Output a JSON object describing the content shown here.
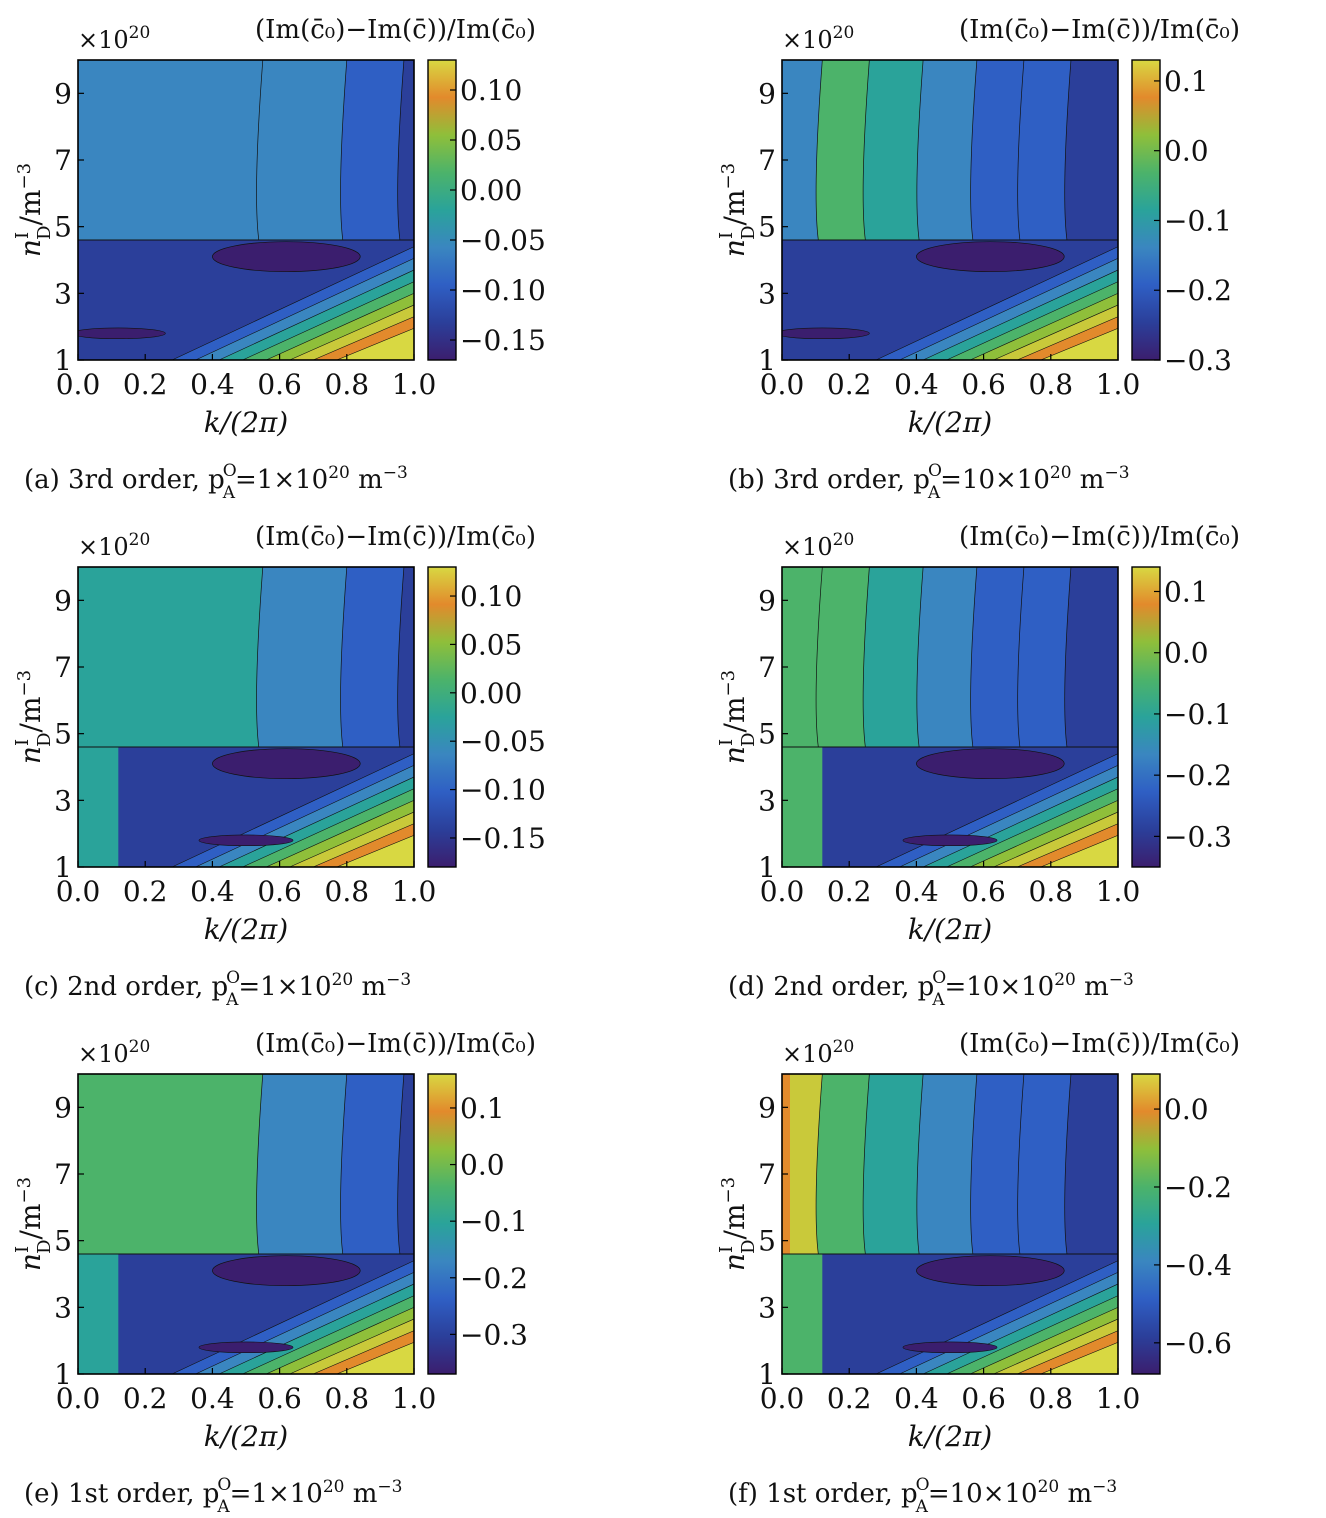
{
  "colorscale": [
    "#3b1e6e",
    "#2b3f9a",
    "#2f5fc4",
    "#3a86c0",
    "#2aa39a",
    "#4cb36a",
    "#8fbf3a",
    "#c9c93a",
    "#e28a2c",
    "#d8d842"
  ],
  "chart_data": [
    {
      "type": "contour",
      "caption": "(a) 3rd order, p",
      "caption_sub": "A",
      "caption_sup": "O",
      "caption_tail": "=1×10",
      "caption_exp": "20",
      "caption_unit": " m",
      "caption_unit_exp": "−3",
      "colorbar_title": "(Im(c̄₀)−Im(c̄))/Im(c̄₀)",
      "multiplier": "×10",
      "multiplier_exp": "20",
      "xlabel": "k/(2π)",
      "ylabel": "n",
      "ylabel_sup": "I",
      "ylabel_sub": "D",
      "ylabel_unit": "/m",
      "ylabel_unit_exp": "−3",
      "xlim": [
        0.0,
        1.0
      ],
      "ylim": [
        1,
        10
      ],
      "xticks": [
        "0.0",
        "0.2",
        "0.4",
        "0.6",
        "0.8",
        "1.0"
      ],
      "yticks": [
        "1",
        "3",
        "5",
        "7",
        "9"
      ],
      "colorbar_range": [
        -0.17,
        0.13
      ],
      "colorbar_ticks": [
        "0.10",
        "0.05",
        "0.00",
        "−0.05",
        "−0.10",
        "−0.15"
      ],
      "colorbar_values": [
        0.1,
        0.05,
        0.0,
        -0.05,
        -0.1,
        -0.15
      ]
    },
    {
      "type": "contour",
      "caption": "(b) 3rd order, p",
      "caption_sub": "A",
      "caption_sup": "O",
      "caption_tail": "=10×10",
      "caption_exp": "20",
      "caption_unit": " m",
      "caption_unit_exp": "−3",
      "colorbar_title": "(Im(c̄₀)−Im(c̄))/Im(c̄₀)",
      "multiplier": "×10",
      "multiplier_exp": "20",
      "xlabel": "k/(2π)",
      "ylabel": "n",
      "ylabel_sup": "I",
      "ylabel_sub": "D",
      "ylabel_unit": "/m",
      "ylabel_unit_exp": "−3",
      "xlim": [
        0.0,
        1.0
      ],
      "ylim": [
        1,
        10
      ],
      "xticks": [
        "0.0",
        "0.2",
        "0.4",
        "0.6",
        "0.8",
        "1.0"
      ],
      "yticks": [
        "1",
        "3",
        "5",
        "7",
        "9"
      ],
      "colorbar_range": [
        -0.3,
        0.13
      ],
      "colorbar_ticks": [
        "0.1",
        "0.0",
        "−0.1",
        "−0.2",
        "−0.3"
      ],
      "colorbar_values": [
        0.1,
        0.0,
        -0.1,
        -0.2,
        -0.3
      ]
    },
    {
      "type": "contour",
      "caption": "(c) 2nd order, p",
      "caption_sub": "A",
      "caption_sup": "O",
      "caption_tail": "=1×10",
      "caption_exp": "20",
      "caption_unit": " m",
      "caption_unit_exp": "−3",
      "colorbar_title": "(Im(c̄₀)−Im(c̄))/Im(c̄₀)",
      "multiplier": "×10",
      "multiplier_exp": "20",
      "xlabel": "k/(2π)",
      "ylabel": "n",
      "ylabel_sup": "I",
      "ylabel_sub": "D",
      "ylabel_unit": "/m",
      "ylabel_unit_exp": "−3",
      "xlim": [
        0.0,
        1.0
      ],
      "ylim": [
        1,
        10
      ],
      "xticks": [
        "0.0",
        "0.2",
        "0.4",
        "0.6",
        "0.8",
        "1.0"
      ],
      "yticks": [
        "1",
        "3",
        "5",
        "7",
        "9"
      ],
      "colorbar_range": [
        -0.18,
        0.13
      ],
      "colorbar_ticks": [
        "0.10",
        "0.05",
        "0.00",
        "−0.05",
        "−0.10",
        "−0.15"
      ],
      "colorbar_values": [
        0.1,
        0.05,
        0.0,
        -0.05,
        -0.1,
        -0.15
      ]
    },
    {
      "type": "contour",
      "caption": "(d) 2nd order, p",
      "caption_sub": "A",
      "caption_sup": "O",
      "caption_tail": "=10×10",
      "caption_exp": "20",
      "caption_unit": " m",
      "caption_unit_exp": "−3",
      "colorbar_title": "(Im(c̄₀)−Im(c̄))/Im(c̄₀)",
      "multiplier": "×10",
      "multiplier_exp": "20",
      "xlabel": "k/(2π)",
      "ylabel": "n",
      "ylabel_sup": "I",
      "ylabel_sub": "D",
      "ylabel_unit": "/m",
      "ylabel_unit_exp": "−3",
      "xlim": [
        0.0,
        1.0
      ],
      "ylim": [
        1,
        10
      ],
      "xticks": [
        "0.0",
        "0.2",
        "0.4",
        "0.6",
        "0.8",
        "1.0"
      ],
      "yticks": [
        "1",
        "3",
        "5",
        "7",
        "9"
      ],
      "colorbar_range": [
        -0.35,
        0.14
      ],
      "colorbar_ticks": [
        "0.1",
        "0.0",
        "−0.1",
        "−0.2",
        "−0.3"
      ],
      "colorbar_values": [
        0.1,
        0.0,
        -0.1,
        -0.2,
        -0.3
      ]
    },
    {
      "type": "contour",
      "caption": "(e) 1st order, p",
      "caption_sub": "A",
      "caption_sup": "O",
      "caption_tail": "=1×10",
      "caption_exp": "20",
      "caption_unit": " m",
      "caption_unit_exp": "−3",
      "colorbar_title": "(Im(c̄₀)−Im(c̄))/Im(c̄₀)",
      "multiplier": "×10",
      "multiplier_exp": "20",
      "xlabel": "k/(2π)",
      "ylabel": "n",
      "ylabel_sup": "I",
      "ylabel_sub": "D",
      "ylabel_unit": "/m",
      "ylabel_unit_exp": "−3",
      "xlim": [
        0.0,
        1.0
      ],
      "ylim": [
        1,
        10
      ],
      "xticks": [
        "0.0",
        "0.2",
        "0.4",
        "0.6",
        "0.8",
        "1.0"
      ],
      "yticks": [
        "1",
        "3",
        "5",
        "7",
        "9"
      ],
      "colorbar_range": [
        -0.37,
        0.16
      ],
      "colorbar_ticks": [
        "0.1",
        "0.0",
        "−0.1",
        "−0.2",
        "−0.3"
      ],
      "colorbar_values": [
        0.1,
        0.0,
        -0.1,
        -0.2,
        -0.3
      ]
    },
    {
      "type": "contour",
      "caption": "(f) 1st order, p",
      "caption_sub": "A",
      "caption_sup": "O",
      "caption_tail": "=10×10",
      "caption_exp": "20",
      "caption_unit": " m",
      "caption_unit_exp": "−3",
      "colorbar_title": "(Im(c̄₀)−Im(c̄))/Im(c̄₀)",
      "multiplier": "×10",
      "multiplier_exp": "20",
      "xlabel": "k/(2π)",
      "ylabel": "n",
      "ylabel_sup": "I",
      "ylabel_sub": "D",
      "ylabel_unit": "/m",
      "ylabel_unit_exp": "−3",
      "xlim": [
        0.0,
        1.0
      ],
      "ylim": [
        1,
        10
      ],
      "xticks": [
        "0.0",
        "0.2",
        "0.4",
        "0.6",
        "0.8",
        "1.0"
      ],
      "yticks": [
        "1",
        "3",
        "5",
        "7",
        "9"
      ],
      "colorbar_range": [
        -0.68,
        0.09
      ],
      "colorbar_ticks": [
        "0.0",
        "−0.2",
        "−0.4",
        "−0.6"
      ],
      "colorbar_values": [
        0.0,
        -0.2,
        -0.4,
        -0.6
      ]
    }
  ]
}
